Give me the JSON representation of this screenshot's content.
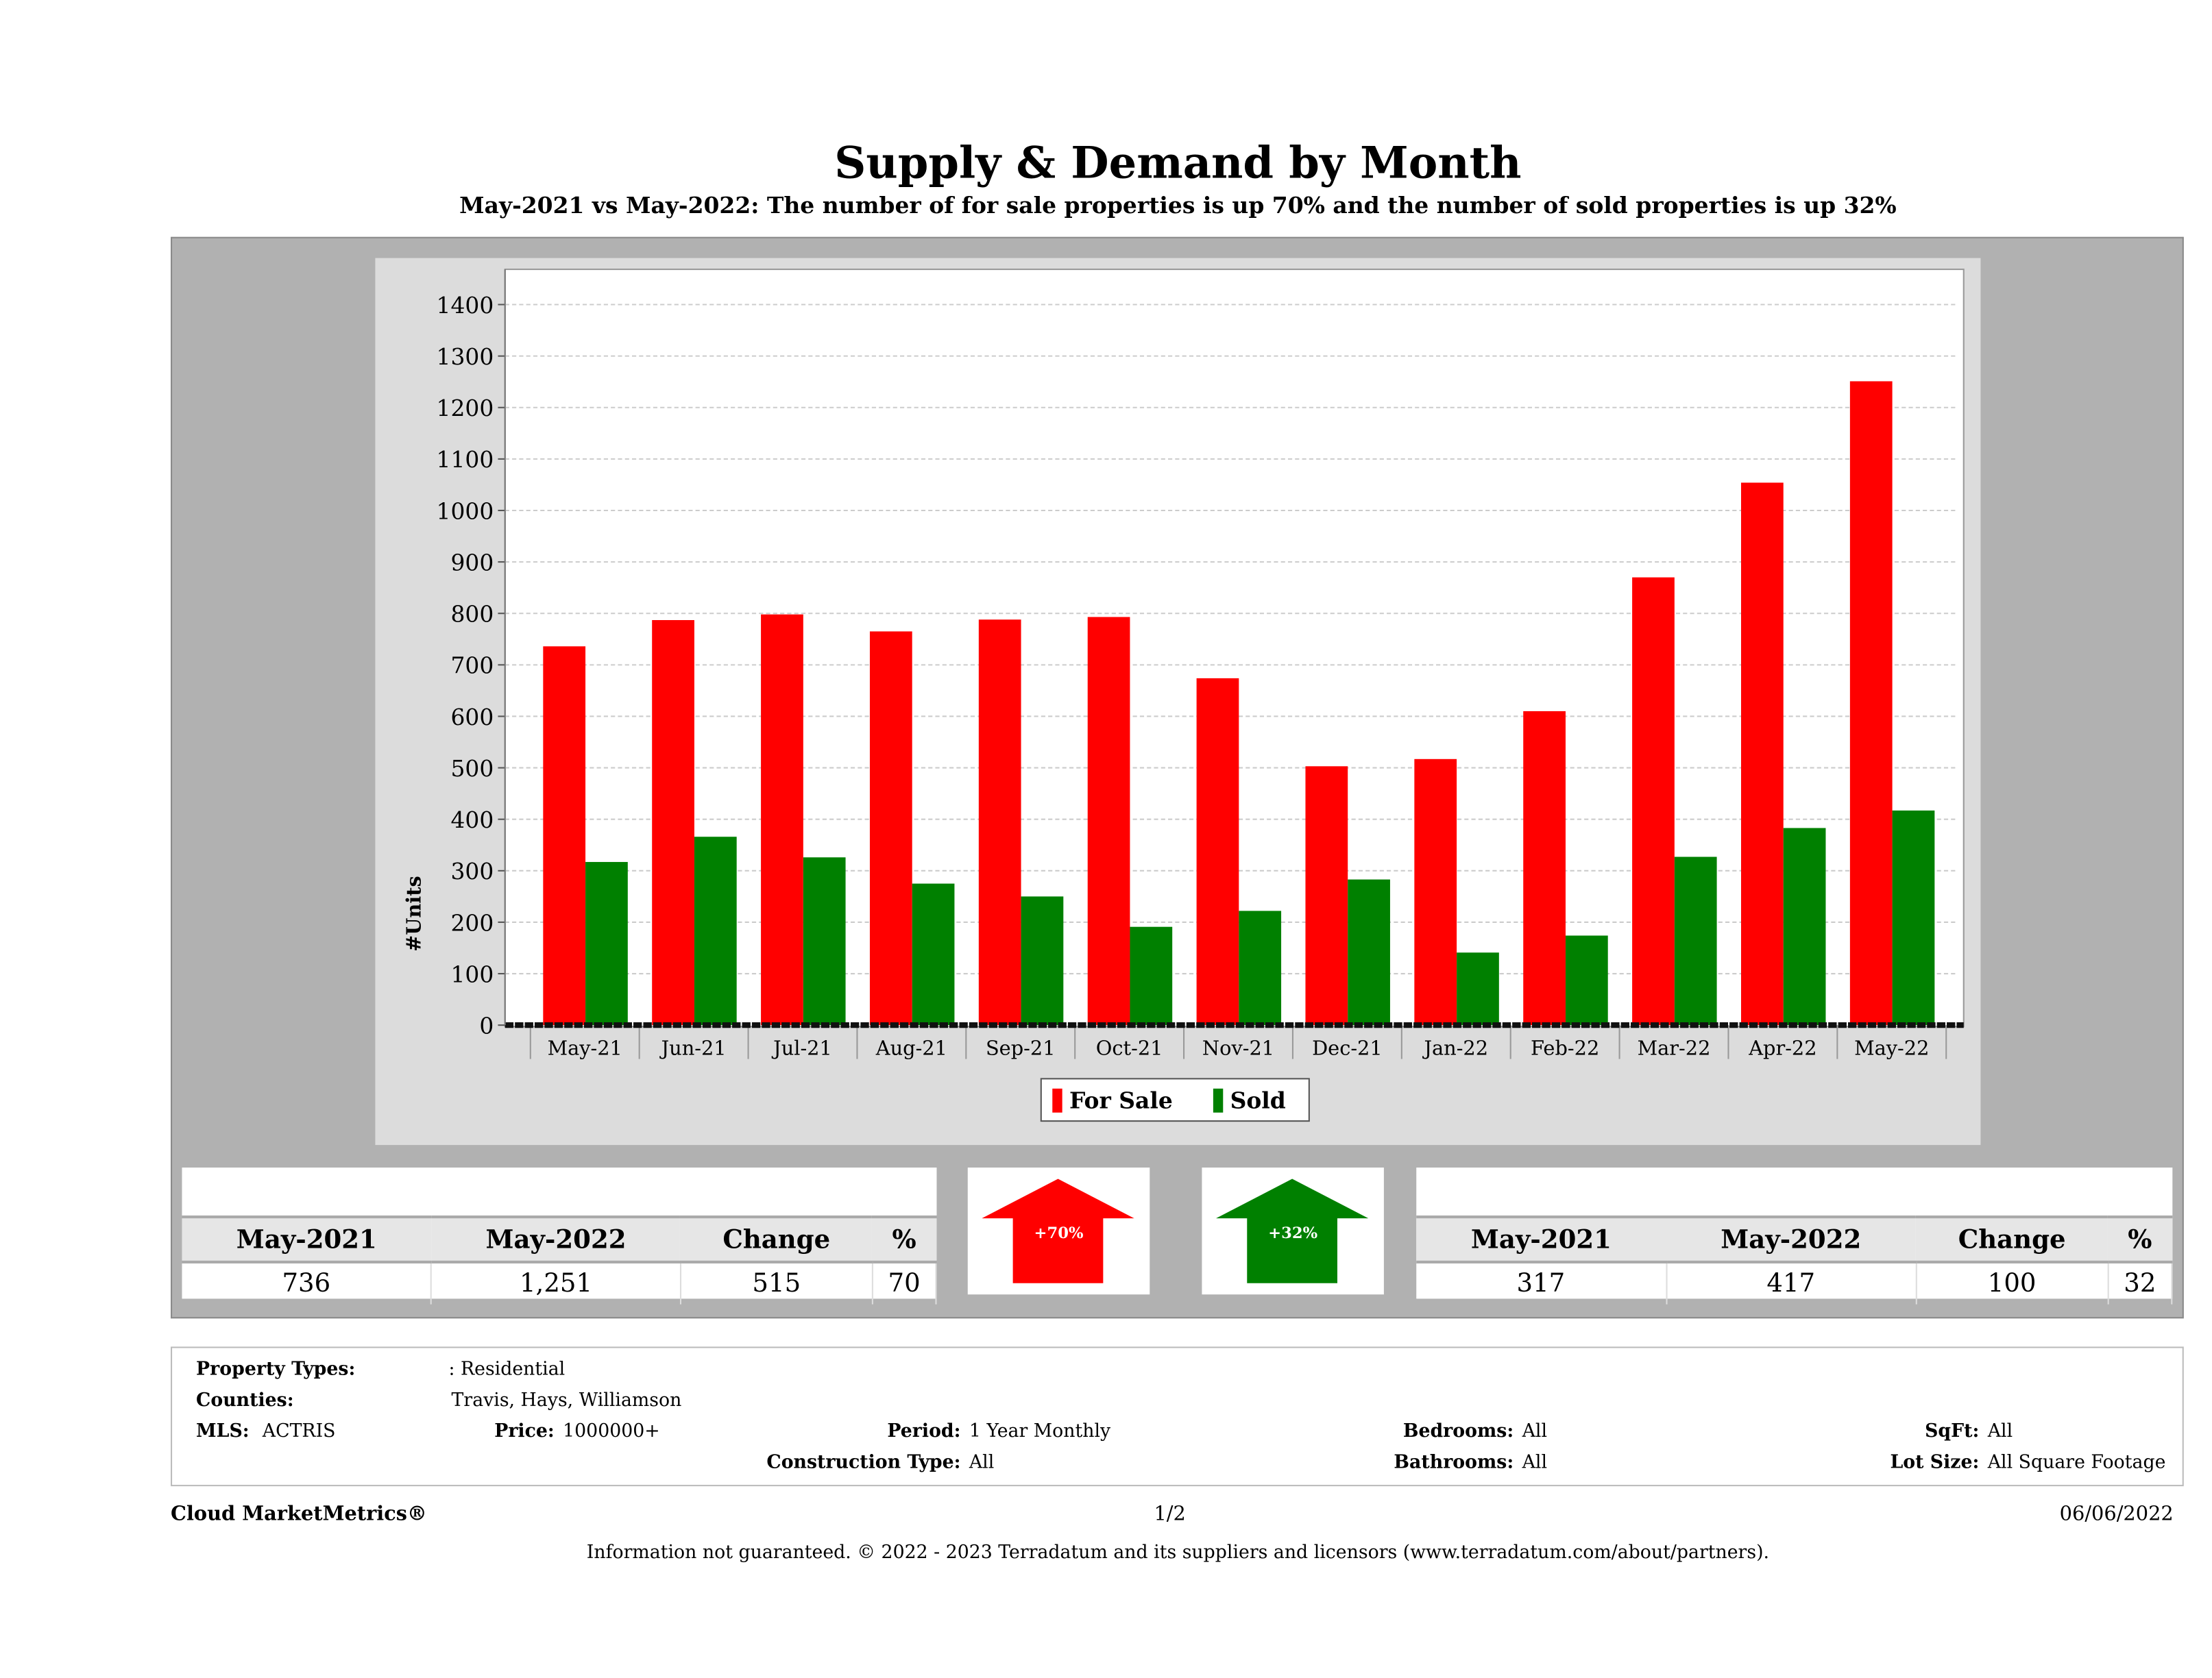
{
  "title": "Supply & Demand by Month",
  "subtitle": "May-2021 vs May-2022: The number of for sale properties is up 70% and the number of sold properties is up 32%",
  "chart_data": {
    "type": "bar",
    "title": "Supply & Demand by Month",
    "xlabel": "",
    "ylabel": "#Units",
    "ylim": [
      0,
      1400
    ],
    "yticks": [
      0,
      100,
      200,
      300,
      400,
      500,
      600,
      700,
      800,
      900,
      1000,
      1100,
      1200,
      1300,
      1400
    ],
    "categories": [
      "May-21",
      "Jun-21",
      "Jul-21",
      "Aug-21",
      "Sep-21",
      "Oct-21",
      "Nov-21",
      "Dec-21",
      "Jan-22",
      "Feb-22",
      "Mar-22",
      "Apr-22",
      "May-22"
    ],
    "series": [
      {
        "name": "For Sale",
        "color": "#ff0000",
        "values": [
          736,
          787,
          798,
          765,
          788,
          793,
          674,
          503,
          517,
          610,
          870,
          1054,
          1251
        ]
      },
      {
        "name": "Sold",
        "color": "#008000",
        "values": [
          317,
          366,
          326,
          275,
          250,
          191,
          222,
          283,
          141,
          174,
          327,
          383,
          417
        ]
      }
    ],
    "grid": true,
    "legend": "bottom-center"
  },
  "for_sale_table": {
    "headers": [
      "May-2021",
      "May-2022",
      "Change",
      "%"
    ],
    "values": [
      "736",
      "1,251",
      "515",
      "70"
    ]
  },
  "sold_table": {
    "headers": [
      "May-2021",
      "May-2022",
      "Change",
      "%"
    ],
    "values": [
      "317",
      "417",
      "100",
      "32"
    ]
  },
  "for_sale_arrow": {
    "label": "+70%",
    "color": "#ff0000",
    "direction": "up"
  },
  "sold_arrow": {
    "label": "+32%",
    "color": "#008000",
    "direction": "up"
  },
  "info": {
    "property_types_label": "Property Types:",
    "property_types": ": Residential",
    "counties_label": "Counties:",
    "counties": "Travis, Hays, Williamson",
    "mls_label": "MLS:",
    "mls": "ACTRIS",
    "price_label": "Price:",
    "price": "1000000+",
    "period_label": "Period:",
    "period": "1 Year Monthly",
    "construction_label": "Construction Type:",
    "construction": "All",
    "bedrooms_label": "Bedrooms:",
    "bedrooms": "All",
    "bathrooms_label": "Bathrooms:",
    "bathrooms": "All",
    "sqft_label": "SqFt:",
    "sqft": "All",
    "lot_label": "Lot Size:",
    "lot": "All Square Footage"
  },
  "footer": {
    "brand": "Cloud MarketMetrics®",
    "page": "1/2",
    "date": "06/06/2022",
    "disclaimer": "Information not guaranteed. © 2022 - 2023 Terradatum and its suppliers and licensors (www.terradatum.com/about/partners)."
  }
}
